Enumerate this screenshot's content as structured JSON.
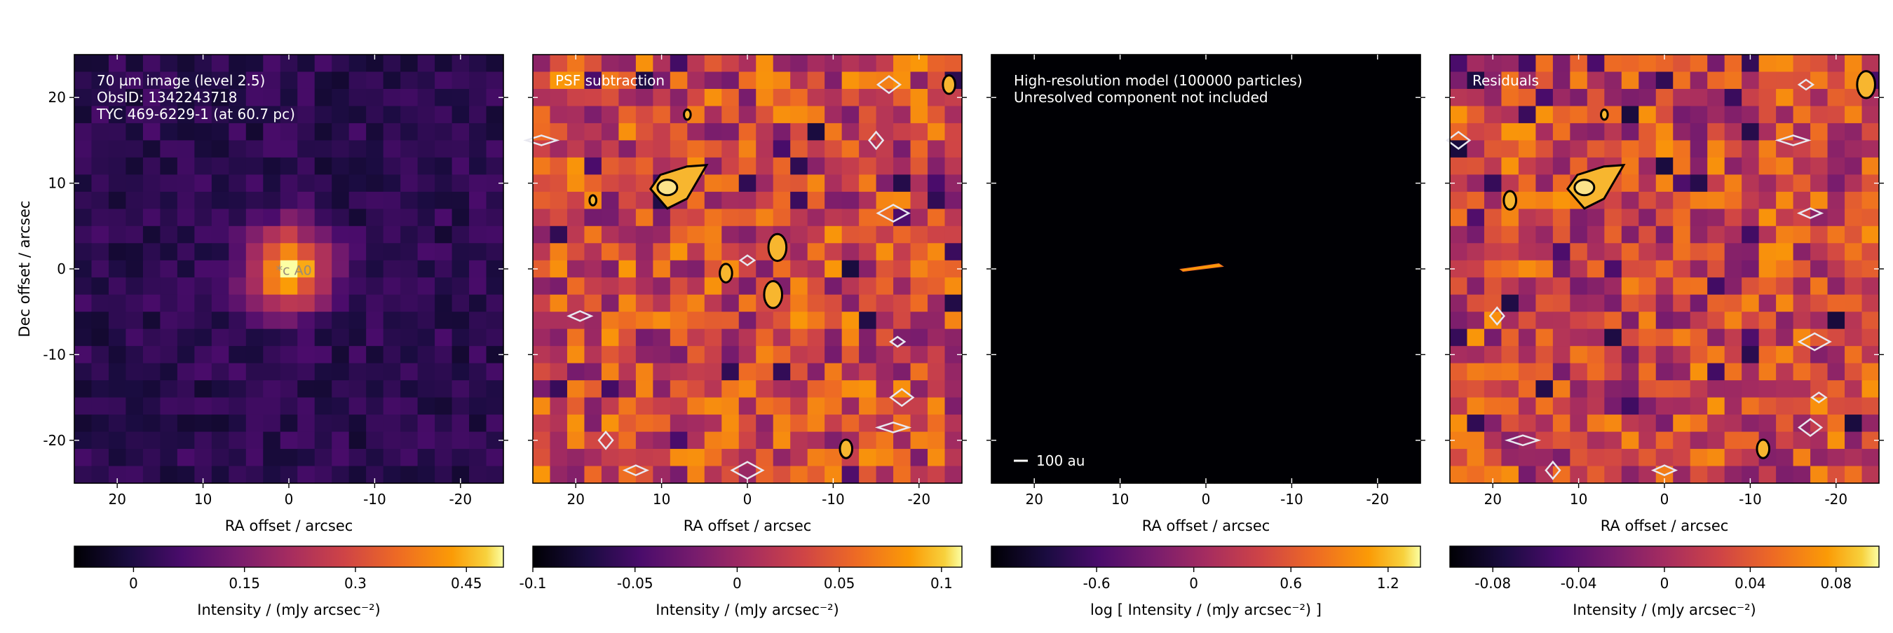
{
  "chart_data": [
    {
      "type": "heatmap",
      "annotations": [
        "70 µm image (level 2.5)",
        "ObsID: 1342243718",
        "TYC 469-6229-1 (at 60.7 pc)"
      ],
      "star_label": "*c A0",
      "xlabel": "RA offset / arcsec",
      "ylabel": "Dec offset / arcsec",
      "xlim": [
        25,
        -25
      ],
      "ylim": [
        -25,
        25
      ],
      "xticks": [
        20,
        10,
        0,
        -10,
        -20
      ],
      "yticks": [
        20,
        10,
        0,
        -10,
        -20
      ],
      "colormap": "inferno",
      "colorbar": {
        "range": [
          -0.08,
          0.5
        ],
        "ticks": [
          0,
          0.15,
          0.3,
          0.45
        ],
        "tick_labels": [
          "0",
          "0.15",
          "0.3",
          "0.45"
        ],
        "label": "Intensity / (mJy arcsec⁻²)"
      },
      "source": {
        "x": 0,
        "y": 0,
        "peak": 0.48
      }
    },
    {
      "type": "heatmap",
      "annotations": [
        "PSF subtraction"
      ],
      "xlabel": "RA offset / arcsec",
      "xlim": [
        25,
        -25
      ],
      "ylim": [
        -25,
        25
      ],
      "xticks": [
        20,
        10,
        0,
        -10,
        -20
      ],
      "yticks": [
        20,
        10,
        0,
        -10,
        -20
      ],
      "colormap": "inferno",
      "colorbar": {
        "range": [
          -0.1,
          0.11
        ],
        "ticks": [
          -0.1,
          -0.05,
          0,
          0.05,
          0.1
        ],
        "tick_labels": [
          "-0.1",
          "-0.05",
          "0",
          "0.05",
          "0.1"
        ],
        "label": "Intensity / (mJy arcsec⁻²)"
      },
      "positive_contours": [
        {
          "x": 9,
          "y": 9.5
        },
        {
          "x": 2.5,
          "y": -0.5
        },
        {
          "x": -3.5,
          "y": 2.5
        },
        {
          "x": 18,
          "y": 8
        },
        {
          "x": -23.5,
          "y": 21.5
        },
        {
          "x": -3,
          "y": -3
        },
        {
          "x": 7,
          "y": 18
        },
        {
          "x": -11.5,
          "y": -21
        }
      ],
      "negative_contours": [
        {
          "x": 0,
          "y": 1
        },
        {
          "x": -16.5,
          "y": 21.5
        },
        {
          "x": 24,
          "y": 15
        },
        {
          "x": -15,
          "y": 15
        },
        {
          "x": 19.5,
          "y": -5.5
        },
        {
          "x": -17,
          "y": 6.5
        },
        {
          "x": -17.5,
          "y": -8.5
        },
        {
          "x": -18,
          "y": -15
        },
        {
          "x": -17,
          "y": -18.5
        },
        {
          "x": 16.5,
          "y": -20
        },
        {
          "x": 13,
          "y": -23.5
        },
        {
          "x": 0,
          "y": -23.5
        }
      ]
    },
    {
      "type": "heatmap",
      "annotations": [
        "High-resolution model (100000 particles)",
        "Unresolved component not included"
      ],
      "scalebar_label": "100 au",
      "xlabel": "RA offset / arcsec",
      "xlim": [
        25,
        -25
      ],
      "ylim": [
        -25,
        25
      ],
      "xticks": [
        20,
        10,
        0,
        -10,
        -20
      ],
      "yticks": [
        20,
        10,
        0,
        -10,
        -20
      ],
      "colormap": "inferno",
      "colorbar": {
        "range": [
          -1.25,
          1.4
        ],
        "ticks": [
          -0.6,
          0,
          0.6,
          1.2
        ],
        "tick_labels": [
          "-0.6",
          "0",
          "0.6",
          "1.2"
        ],
        "label": "log [ Intensity / (mJy arcsec⁻²) ]"
      },
      "disk": {
        "x_range": [
          3,
          -2
        ],
        "y": 0.2
      }
    },
    {
      "type": "heatmap",
      "annotations": [
        "Residuals"
      ],
      "xlabel": "RA offset / arcsec",
      "xlim": [
        25,
        -25
      ],
      "ylim": [
        -25,
        25
      ],
      "xticks": [
        20,
        10,
        0,
        -10,
        -20
      ],
      "yticks": [
        20,
        10,
        0,
        -10,
        -20
      ],
      "colormap": "inferno",
      "colorbar": {
        "range": [
          -0.1,
          0.1
        ],
        "ticks": [
          -0.08,
          -0.04,
          0,
          0.04,
          0.08
        ],
        "tick_labels": [
          "-0.08",
          "-0.04",
          "0",
          "0.04",
          "0.08"
        ],
        "label": "Intensity / (mJy arcsec⁻²)"
      },
      "positive_contours": [
        {
          "x": 9,
          "y": 9.5
        },
        {
          "x": 18,
          "y": 8
        },
        {
          "x": -23.5,
          "y": 21.5
        },
        {
          "x": 7,
          "y": 18
        },
        {
          "x": -11.5,
          "y": -21
        }
      ],
      "negative_contours": [
        {
          "x": -16.5,
          "y": 21.5
        },
        {
          "x": 24,
          "y": 15
        },
        {
          "x": -15,
          "y": 15
        },
        {
          "x": 19.5,
          "y": -5.5
        },
        {
          "x": -17,
          "y": 6.5
        },
        {
          "x": -17.5,
          "y": -8.5
        },
        {
          "x": -18,
          "y": -15
        },
        {
          "x": -17,
          "y": -18.5
        },
        {
          "x": 16.5,
          "y": -20
        },
        {
          "x": 13,
          "y": -23.5
        },
        {
          "x": 0,
          "y": -23.5
        }
      ]
    }
  ]
}
